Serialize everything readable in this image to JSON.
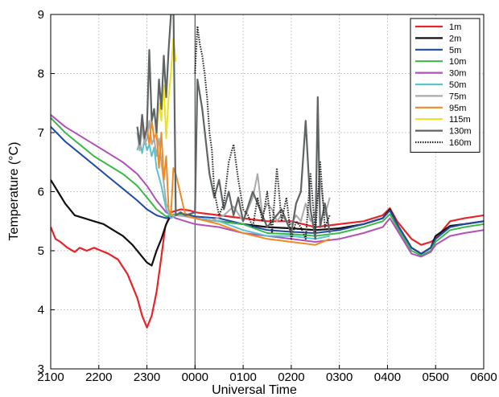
{
  "chart_data": {
    "type": "line",
    "xlabel": "Universal Time",
    "ylabel": "Temperature (°C)",
    "ylim": [
      3,
      9
    ],
    "xlim": [
      0,
      9
    ],
    "x_tick_labels": [
      "2100",
      "2200",
      "2300",
      "0000",
      "0100",
      "0200",
      "0300",
      "0400",
      "0500",
      "0600"
    ],
    "y_ticks": [
      3,
      4,
      5,
      6,
      7,
      8,
      9
    ],
    "grid": true,
    "legend_position": "top-right",
    "vertical_marker_x": 3,
    "series": [
      {
        "name": "1m",
        "color": "#e8242a",
        "width": 2.2,
        "style": "solid",
        "x": [
          0,
          0.1,
          0.2,
          0.35,
          0.5,
          0.6,
          0.75,
          0.9,
          1.05,
          1.2,
          1.4,
          1.6,
          1.8,
          1.9,
          2.0,
          2.1,
          2.2,
          2.3,
          2.38,
          2.5,
          2.7,
          2.9,
          3.0,
          3.5,
          4.0,
          4.5,
          5.0,
          5.5,
          6.0,
          6.5,
          6.9,
          7.05,
          7.2,
          7.5,
          7.7,
          7.9,
          8.0,
          8.3,
          8.6,
          9.0
        ],
        "y": [
          5.4,
          5.2,
          5.15,
          5.05,
          4.98,
          5.05,
          5.0,
          5.05,
          5.0,
          4.95,
          4.85,
          4.6,
          4.2,
          3.9,
          3.7,
          3.9,
          4.3,
          4.9,
          5.4,
          5.65,
          5.7,
          5.68,
          5.65,
          5.6,
          5.55,
          5.5,
          5.5,
          5.4,
          5.45,
          5.5,
          5.6,
          5.72,
          5.5,
          5.2,
          5.1,
          5.15,
          5.2,
          5.5,
          5.55,
          5.6
        ]
      },
      {
        "name": "2m",
        "color": "#111111",
        "width": 2.2,
        "style": "solid",
        "x": [
          0,
          0.15,
          0.3,
          0.5,
          0.7,
          0.9,
          1.1,
          1.3,
          1.5,
          1.7,
          1.9,
          2.0,
          2.1,
          2.2,
          2.3,
          2.4,
          2.5,
          2.7,
          2.9,
          3.0,
          3.5,
          4.0,
          4.5,
          5.0,
          5.5,
          6.0,
          6.5,
          6.9,
          7.05,
          7.2,
          7.5,
          7.7,
          7.9,
          8.0,
          8.3,
          8.6,
          9.0
        ],
        "y": [
          6.2,
          6.0,
          5.8,
          5.6,
          5.55,
          5.5,
          5.45,
          5.35,
          5.25,
          5.1,
          4.9,
          4.8,
          4.75,
          5.0,
          5.2,
          5.45,
          5.6,
          5.62,
          5.6,
          5.55,
          5.5,
          5.45,
          5.4,
          5.38,
          5.35,
          5.38,
          5.45,
          5.55,
          5.7,
          5.45,
          5.05,
          4.95,
          5.05,
          5.25,
          5.42,
          5.45,
          5.5
        ]
      },
      {
        "name": "5m",
        "color": "#1f4aa8",
        "width": 2,
        "style": "solid",
        "x": [
          0,
          0.3,
          0.6,
          0.9,
          1.2,
          1.5,
          1.8,
          2.0,
          2.2,
          2.4,
          2.6,
          2.8,
          3.0,
          3.5,
          4.0,
          4.5,
          5.0,
          5.5,
          6.0,
          6.5,
          6.9,
          7.05,
          7.2,
          7.5,
          7.7,
          7.9,
          8.0,
          8.3,
          8.6,
          9.0
        ],
        "y": [
          7.1,
          6.85,
          6.65,
          6.45,
          6.25,
          6.05,
          5.85,
          5.7,
          5.6,
          5.55,
          5.6,
          5.62,
          5.58,
          5.55,
          5.45,
          5.35,
          5.32,
          5.3,
          5.35,
          5.45,
          5.55,
          5.68,
          5.45,
          5.05,
          4.95,
          5.05,
          5.2,
          5.4,
          5.45,
          5.5
        ]
      },
      {
        "name": "10m",
        "color": "#3cb94a",
        "width": 2,
        "style": "solid",
        "x": [
          0,
          0.3,
          0.6,
          0.9,
          1.2,
          1.5,
          1.8,
          2.0,
          2.2,
          2.4,
          2.6,
          2.8,
          3.0,
          3.5,
          4.0,
          4.5,
          5.0,
          5.5,
          6.0,
          6.5,
          6.9,
          7.05,
          7.2,
          7.5,
          7.7,
          7.9,
          8.0,
          8.3,
          8.6,
          9.0
        ],
        "y": [
          7.25,
          7.0,
          6.8,
          6.6,
          6.45,
          6.3,
          6.1,
          5.9,
          5.7,
          5.58,
          5.62,
          5.6,
          5.55,
          5.5,
          5.45,
          5.3,
          5.28,
          5.25,
          5.3,
          5.4,
          5.5,
          5.62,
          5.4,
          5.0,
          4.92,
          5.0,
          5.15,
          5.35,
          5.4,
          5.45
        ]
      },
      {
        "name": "30m",
        "color": "#b050b8",
        "width": 2,
        "style": "solid",
        "x": [
          0,
          0.3,
          0.6,
          0.9,
          1.2,
          1.5,
          1.8,
          2.0,
          2.2,
          2.4,
          2.6,
          2.8,
          3.0,
          3.5,
          4.0,
          4.5,
          5.0,
          5.5,
          6.0,
          6.5,
          6.9,
          7.05,
          7.2,
          7.5,
          7.7,
          7.9,
          8.0,
          8.3,
          8.6,
          9.0
        ],
        "y": [
          7.3,
          7.1,
          6.95,
          6.8,
          6.65,
          6.5,
          6.3,
          6.1,
          5.85,
          5.65,
          5.55,
          5.5,
          5.45,
          5.4,
          5.3,
          5.25,
          5.2,
          5.15,
          5.2,
          5.3,
          5.4,
          5.55,
          5.35,
          4.95,
          4.9,
          4.98,
          5.1,
          5.25,
          5.3,
          5.35
        ]
      },
      {
        "name": "50m",
        "color": "#5bc3d0",
        "width": 2,
        "style": "solid",
        "x": [
          1.8,
          1.85,
          1.9,
          1.95,
          2.0,
          2.05,
          2.1,
          2.15,
          2.2,
          2.3,
          2.4,
          2.5,
          2.6,
          2.8,
          3.0,
          3.5,
          4.0,
          4.5,
          5.0,
          5.5,
          5.8
        ],
        "y": [
          6.7,
          6.85,
          6.65,
          6.9,
          6.7,
          6.8,
          6.6,
          6.75,
          6.4,
          6.1,
          5.7,
          5.55,
          5.6,
          5.6,
          5.55,
          5.5,
          5.35,
          5.25,
          5.25,
          5.2,
          5.25
        ]
      },
      {
        "name": "75m",
        "color": "#aaaaaa",
        "width": 2,
        "style": "solid",
        "x": [
          1.8,
          1.85,
          1.9,
          1.95,
          2.0,
          2.05,
          2.1,
          2.15,
          2.2,
          2.25,
          2.3,
          2.4,
          2.5,
          2.6,
          2.8,
          3.0,
          3.3,
          3.6,
          3.8,
          4.0,
          4.2,
          4.3,
          4.4,
          4.5,
          4.6,
          4.7,
          4.8,
          4.9,
          5.0,
          5.1,
          5.2,
          5.3,
          5.4,
          5.5,
          5.6,
          5.7,
          5.8
        ],
        "y": [
          7.0,
          6.7,
          7.1,
          6.8,
          6.9,
          7.2,
          6.8,
          6.9,
          6.6,
          6.9,
          6.5,
          5.8,
          5.6,
          5.6,
          5.58,
          5.55,
          5.5,
          5.6,
          5.75,
          5.5,
          5.9,
          6.3,
          5.6,
          5.8,
          5.7,
          5.5,
          5.6,
          5.5,
          5.45,
          5.6,
          5.5,
          5.8,
          5.5,
          5.65,
          6.2,
          5.6,
          5.9
        ]
      },
      {
        "name": "95m",
        "color": "#f08a24",
        "width": 2,
        "style": "solid",
        "x": [
          1.9,
          1.95,
          2.0,
          2.05,
          2.1,
          2.15,
          2.2,
          2.25,
          2.3,
          2.35,
          2.4,
          2.45,
          2.5,
          2.55,
          2.6,
          2.8,
          3.0,
          3.5,
          4.0,
          4.5,
          5.0,
          5.5,
          5.8
        ],
        "y": [
          7.2,
          6.9,
          7.1,
          6.8,
          7.2,
          6.9,
          7.0,
          6.4,
          7.0,
          6.2,
          6.6,
          5.7,
          5.6,
          6.4,
          6.3,
          5.6,
          5.55,
          5.45,
          5.3,
          5.2,
          5.15,
          5.1,
          5.2
        ]
      },
      {
        "name": "115m",
        "color": "#f0e020",
        "width": 2,
        "style": "solid",
        "x": [
          2.2,
          2.25,
          2.3,
          2.35,
          2.4,
          2.45,
          2.5,
          2.55,
          2.6
        ],
        "y": [
          7.0,
          7.5,
          7.2,
          7.8,
          6.9,
          7.6,
          8.0,
          8.6,
          8.2
        ]
      },
      {
        "name": "130m",
        "color": "#5f6466",
        "width": 2.2,
        "style": "solid",
        "x": [
          1.8,
          1.85,
          1.9,
          1.95,
          2.0,
          2.05,
          2.1,
          2.15,
          2.2,
          2.25,
          2.3,
          2.35,
          2.4,
          2.45,
          2.5,
          2.55,
          2.6,
          2.7,
          2.8,
          3.0,
          3.05,
          3.15,
          3.3,
          3.4,
          3.5,
          3.6,
          3.7,
          3.8,
          3.9,
          4.0,
          4.2,
          4.5,
          4.8,
          5.0,
          5.1,
          5.2,
          5.3,
          5.4,
          5.5,
          5.55,
          5.6,
          5.7,
          5.8
        ],
        "y": [
          7.1,
          6.8,
          7.3,
          6.9,
          7.1,
          8.4,
          7.2,
          7.4,
          7.0,
          7.9,
          7.4,
          8.3,
          7.6,
          8.4,
          9.0,
          9.3,
          5.6,
          5.65,
          5.6,
          5.65,
          7.9,
          7.4,
          6.3,
          5.9,
          6.2,
          5.7,
          6.0,
          5.6,
          5.9,
          5.5,
          6.0,
          5.4,
          5.7,
          5.3,
          5.8,
          6.0,
          7.2,
          5.7,
          5.2,
          7.6,
          5.4,
          5.8,
          5.3
        ]
      },
      {
        "name": "160m",
        "color": "#222222",
        "width": 2,
        "style": "dotted",
        "x": [
          3.0,
          3.05,
          3.1,
          3.15,
          3.2,
          3.25,
          3.3,
          3.35,
          3.4,
          3.5,
          3.6,
          3.7,
          3.8,
          3.9,
          4.0,
          4.1,
          4.2,
          4.3,
          4.4,
          4.5,
          4.6,
          4.7,
          4.8,
          4.9,
          5.0,
          5.1,
          5.2,
          5.3,
          5.4,
          5.5,
          5.6,
          5.7,
          5.8
        ],
        "y": [
          8.0,
          8.8,
          8.5,
          8.3,
          8.0,
          7.6,
          7.0,
          6.7,
          6.0,
          5.6,
          5.8,
          6.5,
          6.8,
          6.2,
          5.7,
          5.6,
          5.4,
          5.9,
          5.5,
          6.0,
          5.3,
          6.4,
          5.5,
          5.9,
          5.2,
          5.5,
          5.4,
          5.2,
          6.3,
          5.3,
          6.5,
          5.4,
          5.6
        ]
      }
    ]
  }
}
